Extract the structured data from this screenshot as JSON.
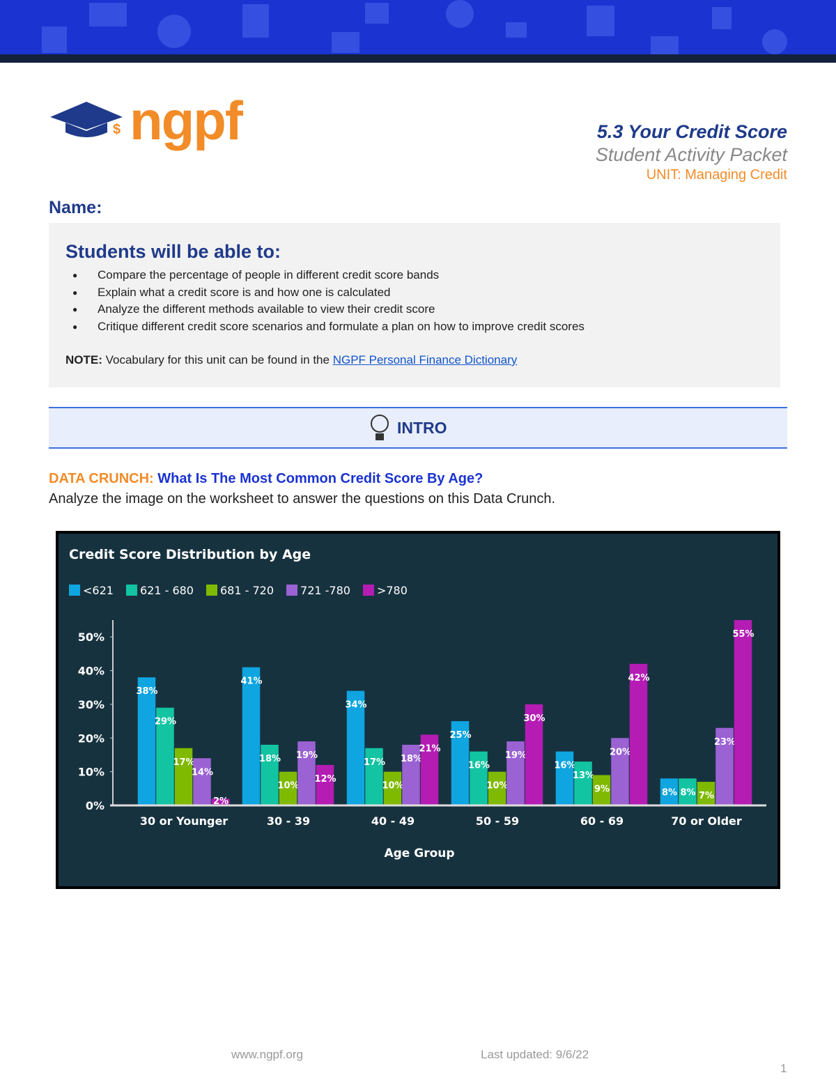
{
  "header": {
    "logo": "ngpf",
    "title": "5.3 Your Credit Score",
    "subtitle": "Student Activity Packet",
    "unit": "UNIT: Managing Credit"
  },
  "name_label": "Name:",
  "objectives": {
    "heading": "Students will be able to:",
    "items": [
      "Compare the percentage of people in different credit score bands",
      "Explain what a credit score is and how one is calculated",
      "Analyze the different methods available to view their credit score",
      "Critique different credit score scenarios and formulate a plan on how to improve credit scores"
    ],
    "note_label": "NOTE:",
    "note_text": "Vocabulary for this unit can be found in the",
    "note_link": "NGPF Personal Finance Dictionary"
  },
  "section": "INTRO",
  "data_crunch": {
    "label": "DATA CRUNCH:",
    "question": "What Is The Most Common Credit Score By Age?",
    "instructions": "Analyze the image on the worksheet to answer the questions on this Data Crunch."
  },
  "chart_data": {
    "type": "bar",
    "title": "Credit Score Distribution by Age",
    "x_label": "Age Group",
    "categories": [
      "30 or Younger",
      "30 - 39",
      "40 - 49",
      "50 - 59",
      "60 - 69",
      "70 or Older"
    ],
    "series": [
      {
        "name": "<621",
        "color": "#0ea5e0",
        "values": [
          38,
          41,
          34,
          25,
          16,
          8
        ],
        "value_labels": [
          "38%",
          "41%",
          "34%",
          "25%",
          "16%",
          "8%"
        ]
      },
      {
        "name": "621 - 680",
        "color": "#13c4a3",
        "values": [
          29,
          18,
          17,
          16,
          13,
          8
        ],
        "value_labels": [
          "29%",
          "18%",
          "17%",
          "16%",
          "13%",
          "8%"
        ]
      },
      {
        "name": "681 - 720",
        "color": "#7fba00",
        "values": [
          17,
          10,
          10,
          10,
          9,
          7
        ],
        "value_labels": [
          "17%",
          "10%",
          "10%",
          "10%",
          "9%",
          "7%"
        ]
      },
      {
        "name": "721 -780",
        "color": "#9b62d4",
        "values": [
          14,
          19,
          18,
          19,
          20,
          23
        ],
        "value_labels": [
          "14%",
          "19%",
          "18%",
          "19%",
          "20%",
          "23%"
        ]
      },
      {
        "name": ">780",
        "color": "#b41cb4",
        "values": [
          2,
          12,
          21,
          30,
          42,
          55
        ],
        "value_labels": [
          "2%",
          "12%",
          "21%",
          "30%",
          "42%",
          "55%"
        ]
      }
    ],
    "ylim": [
      0,
      55
    ],
    "yticks": [
      {
        "value": 0,
        "label": "0%"
      },
      {
        "value": 10,
        "label": "10%"
      },
      {
        "value": 20,
        "label": "20%"
      },
      {
        "value": 30,
        "label": "30%"
      },
      {
        "value": 40,
        "label": "40%"
      },
      {
        "value": 50,
        "label": "50%"
      }
    ],
    "legend": "top-left"
  },
  "footer": {
    "url": "www.ngpf.org",
    "updated": "Last updated: 9/6/22",
    "page": "1"
  }
}
